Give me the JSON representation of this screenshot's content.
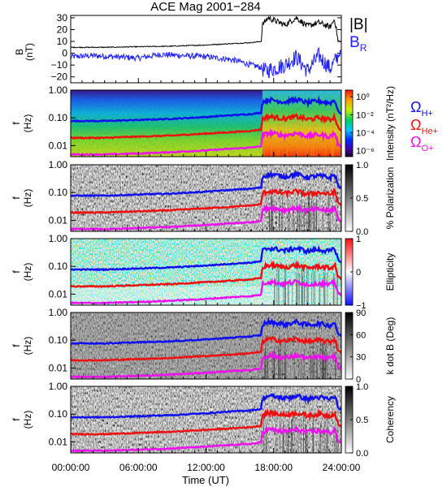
{
  "title": "ACE Mag 2001−284",
  "xlabel": "Time (UT)",
  "x_ticks": [
    "00:00:00",
    "06:00:00",
    "12:00:00",
    "18:00:00",
    "24:00:00"
  ],
  "mag_panel": {
    "ylabel_top": "B",
    "ylabel_bottom": "(nT)",
    "y_ticks": [
      "30",
      "20",
      "10",
      "0",
      "−10",
      "−20"
    ],
    "legend": [
      {
        "base": "|B|",
        "sub": "",
        "color": "#000000"
      },
      {
        "base": "B",
        "sub": "R",
        "color": "#2020ff"
      }
    ]
  },
  "freq_axis": {
    "ylabel_top": "f",
    "ylabel_bottom": "(Hz)",
    "y_ticks": [
      "1.00",
      "0.10",
      "0.01"
    ]
  },
  "panels": [
    {
      "id": "intensity",
      "colorbar_label": "Intensity (nT²/Hz)",
      "colorbar_ticks": [
        "10⁰",
        "10⁻²",
        "10⁻⁴",
        "10⁻⁶"
      ]
    },
    {
      "id": "polarization",
      "colorbar_label": "% Polarization",
      "colorbar_ticks": [
        "1.0",
        "0.5",
        "0.0"
      ]
    },
    {
      "id": "ellipticity",
      "colorbar_label": "Ellipticity",
      "colorbar_ticks": [
        "1",
        "0",
        "−1"
      ]
    },
    {
      "id": "kdotb",
      "colorbar_label": "k dot B (Deg)",
      "colorbar_ticks": [
        "90",
        "60",
        "30",
        "0"
      ]
    },
    {
      "id": "coherency",
      "colorbar_label": "Coherency",
      "colorbar_ticks": [
        "1.0",
        "0.5",
        "0.0"
      ]
    }
  ],
  "gyro_legend": [
    {
      "base": "Ω",
      "sub": "H+",
      "color": "#1010ee"
    },
    {
      "base": "Ω",
      "sub": "He+",
      "color": "#ee1010"
    },
    {
      "base": "Ω",
      "sub": "O+",
      "color": "#ee10ee"
    }
  ],
  "colors": {
    "H": "#1010ee",
    "He": "#ee1010",
    "O": "#ee10ee",
    "B_R": "#2020ff",
    "B_mag": "#000000"
  },
  "chart_data": {
    "type": "line",
    "title": "ACE Mag 2001−284",
    "xlabel": "Time (UT)",
    "x_range_hours": [
      0,
      24
    ],
    "mag": {
      "ylabel": "B (nT)",
      "ylim": [
        -25,
        32
      ],
      "series": [
        {
          "name": "|B|",
          "color": "#000000",
          "x": [
            0,
            3,
            6,
            9,
            12,
            14,
            16,
            16.9,
            17.0,
            17.5,
            18,
            19,
            20,
            21,
            22,
            23,
            23.4,
            23.7,
            24
          ],
          "y": [
            5,
            5,
            5.5,
            6,
            7,
            8,
            9,
            10,
            24,
            30,
            28,
            24,
            30,
            23,
            26,
            22,
            29,
            11,
            9
          ]
        },
        {
          "name": "B_R",
          "color": "#2020ff",
          "x": [
            0,
            2,
            4,
            6,
            8,
            10,
            12,
            14,
            15,
            16,
            16.9,
            17.2,
            18,
            19,
            20,
            21,
            22,
            23,
            24
          ],
          "y": [
            -3,
            -2,
            -3,
            -4,
            -1,
            -2,
            -3,
            -5,
            -7,
            -10,
            -12,
            -15,
            -13,
            -10,
            -3,
            -15,
            -2,
            -13,
            2
          ]
        }
      ]
    },
    "gyrofrequencies_hz": {
      "ylim_log": [
        0.004,
        1.0
      ],
      "x": [
        0,
        3,
        6,
        9,
        12,
        14,
        16,
        16.9,
        17.0,
        17.5,
        18,
        19,
        20,
        21,
        22,
        23,
        23.4,
        23.7,
        24
      ],
      "series": [
        {
          "name": "H+",
          "color": "#1010ee",
          "y": [
            0.077,
            0.077,
            0.084,
            0.092,
            0.107,
            0.122,
            0.137,
            0.152,
            0.37,
            0.45,
            0.43,
            0.37,
            0.45,
            0.35,
            0.4,
            0.34,
            0.44,
            0.17,
            0.14
          ]
        },
        {
          "name": "He+",
          "color": "#ee1010",
          "y": [
            0.019,
            0.019,
            0.021,
            0.023,
            0.027,
            0.03,
            0.034,
            0.038,
            0.092,
            0.11,
            0.107,
            0.092,
            0.11,
            0.087,
            0.1,
            0.085,
            0.11,
            0.043,
            0.035
          ]
        },
        {
          "name": "O+",
          "color": "#ee10ee",
          "y": [
            0.0048,
            0.0048,
            0.0052,
            0.0058,
            0.0067,
            0.0076,
            0.0085,
            0.0095,
            0.023,
            0.028,
            0.027,
            0.023,
            0.028,
            0.022,
            0.025,
            0.021,
            0.028,
            0.011,
            0.009
          ]
        }
      ]
    }
  }
}
